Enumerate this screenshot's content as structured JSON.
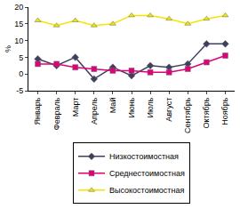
{
  "chart_data": {
    "type": "line",
    "ylabel": "%",
    "categories": [
      "Январь",
      "Февраль",
      "Март",
      "Апрель",
      "Май",
      "Июнь",
      "Июль",
      "Август",
      "Сентябрь",
      "Октябрь",
      "Ноябрь"
    ],
    "series": [
      {
        "name": "Низкостоимостная",
        "color": "#3f3f5f",
        "marker": "diamond",
        "values": [
          4.5,
          2.5,
          5,
          -1.5,
          2,
          -0.5,
          2.5,
          2,
          3,
          9,
          9
        ]
      },
      {
        "name": "Среднестоимостная",
        "color": "#e0007a",
        "marker": "square",
        "values": [
          3,
          3,
          2,
          1.5,
          1,
          1,
          0.5,
          0.5,
          1.5,
          3.5,
          5.5
        ]
      },
      {
        "name": "Высокостоимостная",
        "color": "#f2e600",
        "marker": "triangle",
        "values": [
          16,
          14.5,
          16,
          14.5,
          15,
          17.5,
          17.5,
          16.5,
          15,
          16.5,
          17.5
        ]
      }
    ],
    "ylim": [
      -5,
      20
    ],
    "yticks": [
      -5,
      0,
      5,
      10,
      15,
      20
    ],
    "grid": false,
    "legend": "bottom"
  }
}
